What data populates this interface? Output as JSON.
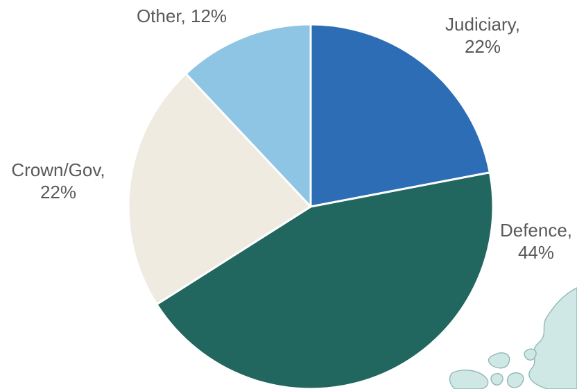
{
  "chart_data": {
    "type": "pie",
    "title": "",
    "legend": "none",
    "slices": [
      {
        "category": "Judiciary",
        "value": 22,
        "label_lines": [
          "Judiciary,",
          "22%"
        ],
        "color": "#2c6db6"
      },
      {
        "category": "Defence",
        "value": 44,
        "label_lines": [
          "Defence,",
          "44%"
        ],
        "color": "#226660"
      },
      {
        "category": "Crown/Gov",
        "value": 22,
        "label_lines": [
          "Crown/Gov,",
          "22%"
        ],
        "color": "#efebe0"
      },
      {
        "category": "Other",
        "value": 12,
        "label_lines": [
          "Other, 12%"
        ],
        "color": "#8ec5e4"
      }
    ]
  },
  "decoration": {
    "icon": "island-map-icon",
    "color": "#cfe8e6"
  }
}
